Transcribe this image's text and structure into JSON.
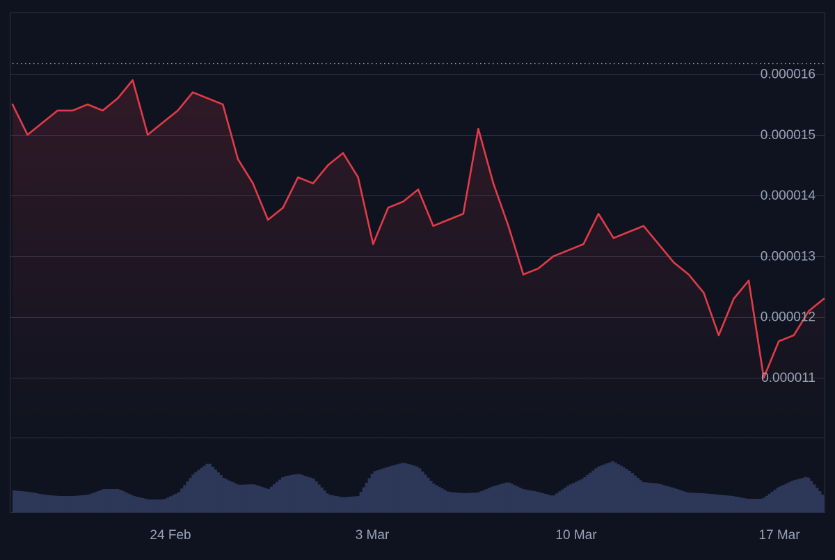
{
  "chart_data": {
    "type": "line",
    "subtype": "price-line-with-volume",
    "title": "",
    "xlabel": "",
    "ylabel": "",
    "x_ticks": [
      "24 Feb",
      "3 Mar",
      "10 Mar",
      "17 Mar"
    ],
    "y_ticks": [
      "0.000011",
      "0.000012",
      "0.000013",
      "0.000014",
      "0.000015",
      "0.000016"
    ],
    "ylim": [
      1.02e-05,
      1.66e-05
    ],
    "reference_line": 1.618e-05,
    "colors": {
      "background": "#0f1320",
      "line": "#e23b48",
      "area_fill": "#e23b48",
      "grid": "#2d3445",
      "volume": "#2d3758",
      "tick_label": "#9aa3b4",
      "reference_line": "#c9ced8"
    },
    "grid": true,
    "series": [
      {
        "dates": [
          "18 Feb",
          "18 Feb",
          "19 Feb",
          "19 Feb",
          "20 Feb",
          "20 Feb",
          "21 Feb",
          "21 Feb",
          "22 Feb",
          "22 Feb",
          "23 Feb",
          "24 Feb",
          "24 Feb",
          "25 Feb",
          "25 Feb",
          "26 Feb",
          "26 Feb",
          "27 Feb",
          "27 Feb",
          "28 Feb",
          "28 Feb",
          "1 Mar",
          "1 Mar",
          "2 Mar",
          "2 Mar",
          "3 Mar",
          "3 Mar",
          "4 Mar",
          "4 Mar",
          "5 Mar",
          "5 Mar",
          "6 Mar",
          "6 Mar",
          "7 Mar",
          "7 Mar",
          "8 Mar",
          "9 Mar",
          "9 Mar",
          "10 Mar",
          "10 Mar",
          "11 Mar",
          "11 Mar",
          "12 Mar",
          "12 Mar",
          "13 Mar",
          "13 Mar",
          "14 Mar",
          "14 Mar",
          "15 Mar",
          "15 Mar",
          "16 Mar",
          "16 Mar",
          "17 Mar",
          "17 Mar",
          "18 Mar"
        ],
        "values": [
          1.55e-05,
          1.5e-05,
          1.52e-05,
          1.54e-05,
          1.54e-05,
          1.55e-05,
          1.54e-05,
          1.56e-05,
          1.59e-05,
          1.5e-05,
          1.52e-05,
          1.54e-05,
          1.57e-05,
          1.56e-05,
          1.55e-05,
          1.46e-05,
          1.42e-05,
          1.36e-05,
          1.38e-05,
          1.43e-05,
          1.42e-05,
          1.45e-05,
          1.47e-05,
          1.43e-05,
          1.32e-05,
          1.38e-05,
          1.39e-05,
          1.41e-05,
          1.35e-05,
          1.36e-05,
          1.37e-05,
          1.51e-05,
          1.42e-05,
          1.35e-05,
          1.27e-05,
          1.28e-05,
          1.3e-05,
          1.31e-05,
          1.32e-05,
          1.37e-05,
          1.33e-05,
          1.34e-05,
          1.35e-05,
          1.32e-05,
          1.29e-05,
          1.27e-05,
          1.24e-05,
          1.17e-05,
          1.23e-05,
          1.26e-05,
          1.1e-05,
          1.16e-05,
          1.17e-05,
          1.21e-05,
          1.23e-05
        ]
      },
      {
        "name": "volume",
        "values": [
          0.28,
          0.26,
          0.22,
          0.2,
          0.2,
          0.22,
          0.3,
          0.3,
          0.2,
          0.15,
          0.15,
          0.25,
          0.52,
          0.68,
          0.46,
          0.36,
          0.37,
          0.3,
          0.48,
          0.52,
          0.45,
          0.22,
          0.18,
          0.2,
          0.55,
          0.62,
          0.68,
          0.62,
          0.38,
          0.26,
          0.24,
          0.25,
          0.34,
          0.4,
          0.3,
          0.26,
          0.2,
          0.35,
          0.45,
          0.62,
          0.7,
          0.58,
          0.4,
          0.38,
          0.32,
          0.25,
          0.24,
          0.22,
          0.2,
          0.16,
          0.16,
          0.32,
          0.42,
          0.48,
          0.22
        ]
      }
    ]
  }
}
